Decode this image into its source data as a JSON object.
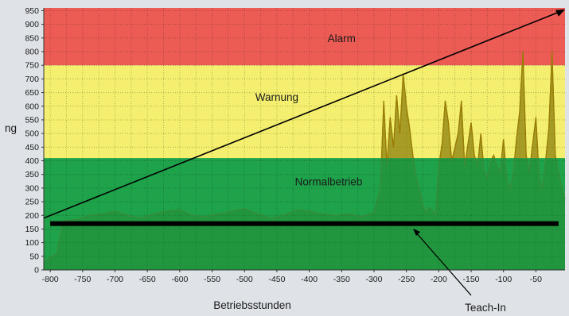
{
  "chart_data": {
    "type": "line",
    "title": "",
    "xlabel": "Betriebsstunden",
    "ylabel": "ng",
    "xlim": [
      -810,
      -5
    ],
    "ylim": [
      0,
      960
    ],
    "x_ticks": [
      -800,
      -750,
      -700,
      -650,
      -600,
      -550,
      -500,
      -450,
      -400,
      -350,
      -300,
      -250,
      -200,
      -150,
      -100,
      -50
    ],
    "x_tick_labels": [
      "-800",
      "-750",
      "-700",
      "-650",
      "-600",
      "-550",
      "-500",
      "-450",
      "-400",
      "-350",
      "-300",
      "-250",
      "-200",
      "-150",
      "-100",
      "-50"
    ],
    "y_ticks": [
      0,
      50,
      100,
      150,
      200,
      250,
      300,
      350,
      400,
      450,
      500,
      550,
      600,
      650,
      700,
      750,
      800,
      850,
      900,
      950
    ],
    "grid": true,
    "zones": [
      {
        "name": "Normalbetrieb",
        "from": 0,
        "to": 410,
        "color": "#1ea24a"
      },
      {
        "name": "Warnung",
        "from": 410,
        "to": 750,
        "color": "#f4ef6e"
      },
      {
        "name": "Alarm",
        "from": 750,
        "to": 960,
        "color": "#ec5c55"
      }
    ],
    "trend_line": {
      "x": [
        -810,
        -5
      ],
      "y": [
        190,
        955
      ]
    },
    "teach_in": {
      "label": "Teach-In",
      "y": 170,
      "x": [
        -800,
        -15
      ]
    },
    "signal": {
      "color": "#3a8a3a",
      "x": [
        -810,
        -790,
        -780,
        -760,
        -740,
        -720,
        -700,
        -680,
        -660,
        -640,
        -620,
        -600,
        -580,
        -560,
        -540,
        -520,
        -500,
        -480,
        -460,
        -440,
        -420,
        -400,
        -380,
        -360,
        -340,
        -320,
        -300,
        -290,
        -285,
        -280,
        -275,
        -270,
        -265,
        -260,
        -255,
        -250,
        -245,
        -240,
        -235,
        -230,
        -225,
        -220,
        -215,
        -210,
        -205,
        -200,
        -195,
        -190,
        -185,
        -180,
        -175,
        -170,
        -165,
        -160,
        -155,
        -150,
        -145,
        -140,
        -135,
        -130,
        -125,
        -120,
        -115,
        -110,
        -105,
        -100,
        -95,
        -90,
        -85,
        -80,
        -75,
        -70,
        -65,
        -60,
        -55,
        -50,
        -45,
        -40,
        -35,
        -30,
        -25,
        -20,
        -15,
        -10,
        -5
      ],
      "y": [
        30,
        60,
        180,
        185,
        200,
        205,
        215,
        200,
        190,
        205,
        215,
        220,
        200,
        195,
        205,
        215,
        225,
        205,
        190,
        200,
        220,
        215,
        205,
        200,
        205,
        195,
        210,
        300,
        620,
        380,
        560,
        450,
        640,
        500,
        720,
        600,
        520,
        420,
        340,
        300,
        240,
        210,
        230,
        220,
        200,
        380,
        460,
        620,
        540,
        400,
        450,
        500,
        620,
        380,
        460,
        540,
        420,
        380,
        500,
        360,
        340,
        400,
        420,
        380,
        360,
        480,
        330,
        300,
        350,
        480,
        580,
        800,
        420,
        360,
        460,
        560,
        340,
        300,
        400,
        520,
        800,
        420,
        360,
        300,
        260
      ]
    }
  }
}
